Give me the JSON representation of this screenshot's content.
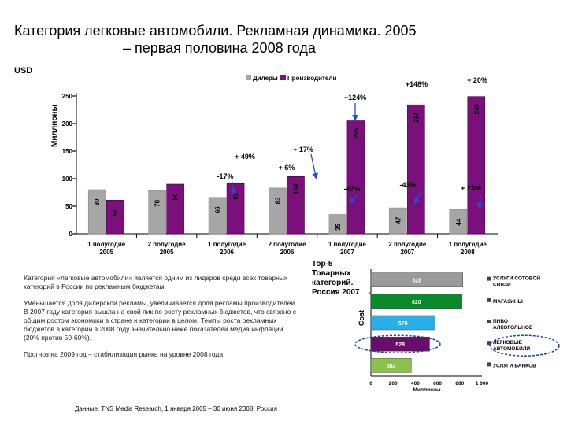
{
  "title": {
    "line1": "Категория легковые автомобили. Рекламная динамика. 2005",
    "line2": "– первая половина 2008 года"
  },
  "currency": "USD",
  "chart_data": [
    {
      "type": "bar",
      "ylabel": "Миллионы",
      "ylim": [
        0,
        250
      ],
      "yticks": [
        0,
        50,
        100,
        150,
        200,
        250
      ],
      "legend": [
        "Дилеры",
        "Производители"
      ],
      "categories": [
        "1 полугодие 2005",
        "2 полугодие 2005",
        "1 полугодие 2006",
        "2 полугодие 2006",
        "1 полугодие 2007",
        "2 полугодие 2007",
        "1 полугодие 2008"
      ],
      "series": [
        {
          "name": "Дилеры",
          "color": "#a6a6a6",
          "values": [
            80,
            78,
            66,
            83,
            35,
            47,
            44
          ]
        },
        {
          "name": "Производители",
          "color": "#7b0f7b",
          "values": [
            61,
            90,
            91,
            104,
            205,
            234,
            249
          ]
        }
      ],
      "annotations": [
        "-17%",
        "+ 49%",
        "+ 6%",
        "+ 17%",
        "+124%",
        "-47%",
        "+148%",
        "-43%",
        "+ 23%",
        "+ 20%"
      ]
    },
    {
      "type": "bar",
      "orientation": "horizontal",
      "title": "Top-5 Товарных категорий. Россия 2007",
      "ylabel": "Cost",
      "xlabel": "Миллионы",
      "xlim": [
        0,
        1000
      ],
      "xticks": [
        "0",
        "200",
        "400",
        "600",
        "800",
        "1 000"
      ],
      "categories": [
        "УСЛУГИ СОТОВОЙ СВЯЗИ",
        "МАГАЗИНЫ",
        "ПИВО АЛКОГОЛЬНОЕ",
        "ЛЕГКОВЫЕ АВТОМОБИЛИ",
        "УСЛУГИ БАНКОВ"
      ],
      "values": [
        828,
        820,
        578,
        528,
        364
      ],
      "value_labels": [
        "828",
        "820",
        "578",
        "528",
        "364"
      ],
      "colors": [
        "#9a9a9a",
        "#0a8a2a",
        "#2ab0e8",
        "#6a0c6a",
        "#8bc34a"
      ]
    }
  ],
  "text": {
    "p1": "Категория «легковые автомобили» является одним из лидеров среди всех товарных категорий в России по рекламным бюджетам.",
    "p2": "Уменьшается доля дилерской рекламы, увеличивается доля рекламы производителей. В 2007 году категория вышла на свой пик по росту рекламных бюджетов, что связано с общим ростом экономики в стране и категории в целом. Темпы роста рекламных бюджетов в категории в 2008 году значительно ниже показателей медиа инфляции (20% против 50-60%).",
    "p3": "Прогноз на 2009 год – стабилизация рынка на уровне 2008 года"
  },
  "top5_title": "Top-5 Товарных категорий. Россия 2007",
  "source": "Данные: TNS Media Research, 1 января 2005 – 30 июня 2008, Россия"
}
